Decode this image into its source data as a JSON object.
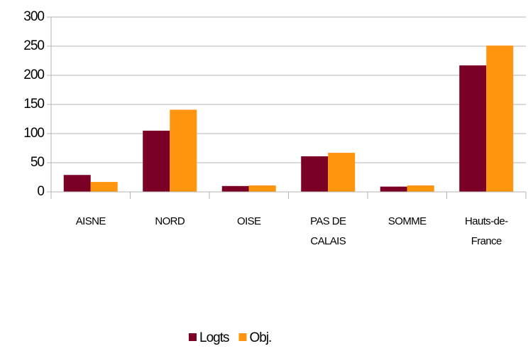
{
  "chart_data": {
    "type": "bar",
    "categories": [
      "AISNE",
      "NORD",
      "OISE",
      "PAS DE CALAIS",
      "SOMME",
      "Hauts-de-France"
    ],
    "series": [
      {
        "name": "Logts",
        "color": "#7b0025",
        "values": [
          29,
          105,
          10,
          61,
          9,
          217
        ]
      },
      {
        "name": "Obj.",
        "color": "#ff950e",
        "values": [
          17,
          141,
          11,
          67,
          11,
          251
        ]
      }
    ],
    "ylim": [
      0,
      300
    ],
    "yticks": [
      0,
      50,
      100,
      150,
      200,
      250,
      300
    ],
    "grid": true,
    "legend": "bottom"
  }
}
